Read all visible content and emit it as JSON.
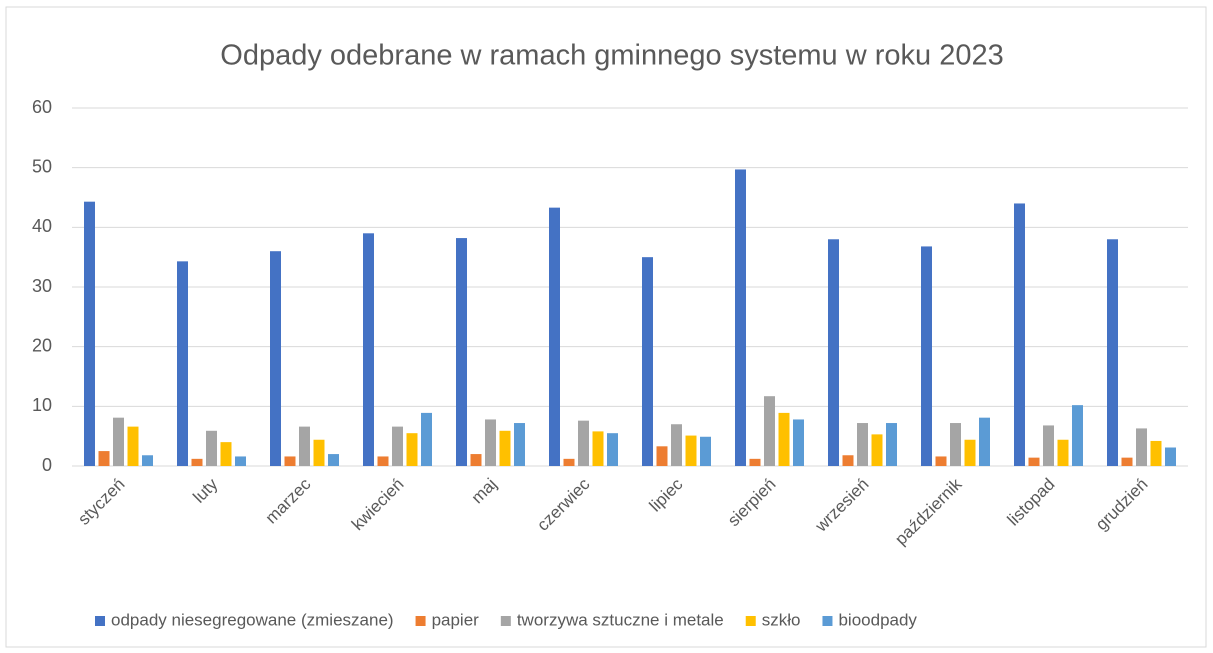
{
  "chart_data": {
    "type": "bar",
    "title": "Odpady odebrane  w ramach gminnego systemu  w roku 2023",
    "categories": [
      "styczeń",
      "luty",
      "marzec",
      "kwiecień",
      "maj",
      "czerwiec",
      "lipiec",
      "sierpień",
      "wrzesień",
      "październik",
      "listopad",
      "grudzień"
    ],
    "series": [
      {
        "name": "odpady niesegregowane (zmieszane)",
        "color": "#4472c4",
        "values": [
          44.3,
          34.3,
          36.0,
          39.0,
          38.2,
          43.3,
          35.0,
          49.7,
          38.0,
          36.8,
          44.0,
          38.0
        ]
      },
      {
        "name": "papier",
        "color": "#ed7d31",
        "values": [
          2.5,
          1.2,
          1.6,
          1.6,
          2.0,
          1.2,
          3.3,
          1.2,
          1.8,
          1.6,
          1.4,
          1.4
        ]
      },
      {
        "name": "tworzywa sztuczne  i metale",
        "color": "#a5a5a5",
        "values": [
          8.1,
          5.9,
          6.6,
          6.6,
          7.8,
          7.6,
          7.0,
          11.7,
          7.2,
          7.2,
          6.8,
          6.3
        ]
      },
      {
        "name": "szkło",
        "color": "#ffc000",
        "values": [
          6.6,
          4.0,
          4.4,
          5.5,
          5.9,
          5.8,
          5.1,
          8.9,
          5.3,
          4.4,
          4.4,
          4.2
        ]
      },
      {
        "name": "bioodpady",
        "color": "#5b9bd5",
        "values": [
          1.8,
          1.6,
          2.0,
          8.9,
          7.2,
          5.5,
          4.9,
          7.8,
          7.2,
          8.1,
          10.2,
          3.1
        ]
      }
    ],
    "ylim": [
      0,
      60
    ],
    "yticks": [
      0,
      10,
      20,
      30,
      40,
      50,
      60
    ],
    "grid": true,
    "legend": "bottom"
  }
}
